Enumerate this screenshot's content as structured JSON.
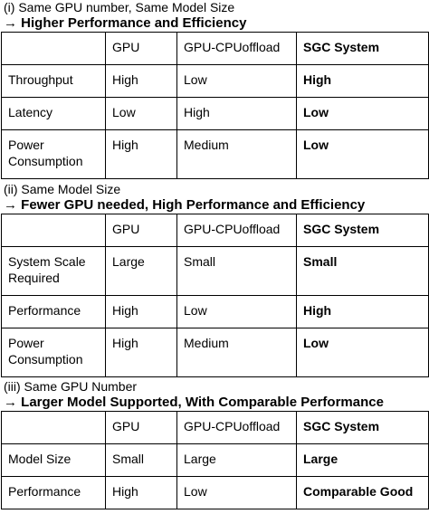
{
  "sections": [
    {
      "subtitle": "(i) Same GPU number, Same Model Size",
      "headline": "→ Higher Performance and Efficiency",
      "header": [
        "",
        "GPU",
        "GPU-CPUoffload",
        "SGC System"
      ],
      "rows": [
        [
          "Throughput",
          "High",
          "Low",
          "High"
        ],
        [
          "Latency",
          "Low",
          "High",
          "Low"
        ],
        [
          "Power Consumption",
          "High",
          "Medium",
          "Low"
        ]
      ]
    },
    {
      "subtitle": "(ii) Same Model Size",
      "headline": "→ Fewer GPU needed, High Performance and Efficiency",
      "header": [
        "",
        "GPU",
        "GPU-CPUoffload",
        "SGC System"
      ],
      "rows": [
        [
          "System Scale Required",
          "Large",
          "Small",
          "Small"
        ],
        [
          "Performance",
          "High",
          "Low",
          "High"
        ],
        [
          "Power Consumption",
          "High",
          "Medium",
          "Low"
        ]
      ]
    },
    {
      "subtitle": "(iii) Same GPU Number",
      "headline": "→ Larger Model Supported, With Comparable Performance",
      "header": [
        "",
        "GPU",
        "GPU-CPUoffload",
        "SGC System"
      ],
      "rows": [
        [
          "Model Size",
          "Small",
          "Large",
          "Large"
        ],
        [
          "Performance",
          "High",
          "Low",
          "Comparable Good"
        ]
      ]
    }
  ]
}
